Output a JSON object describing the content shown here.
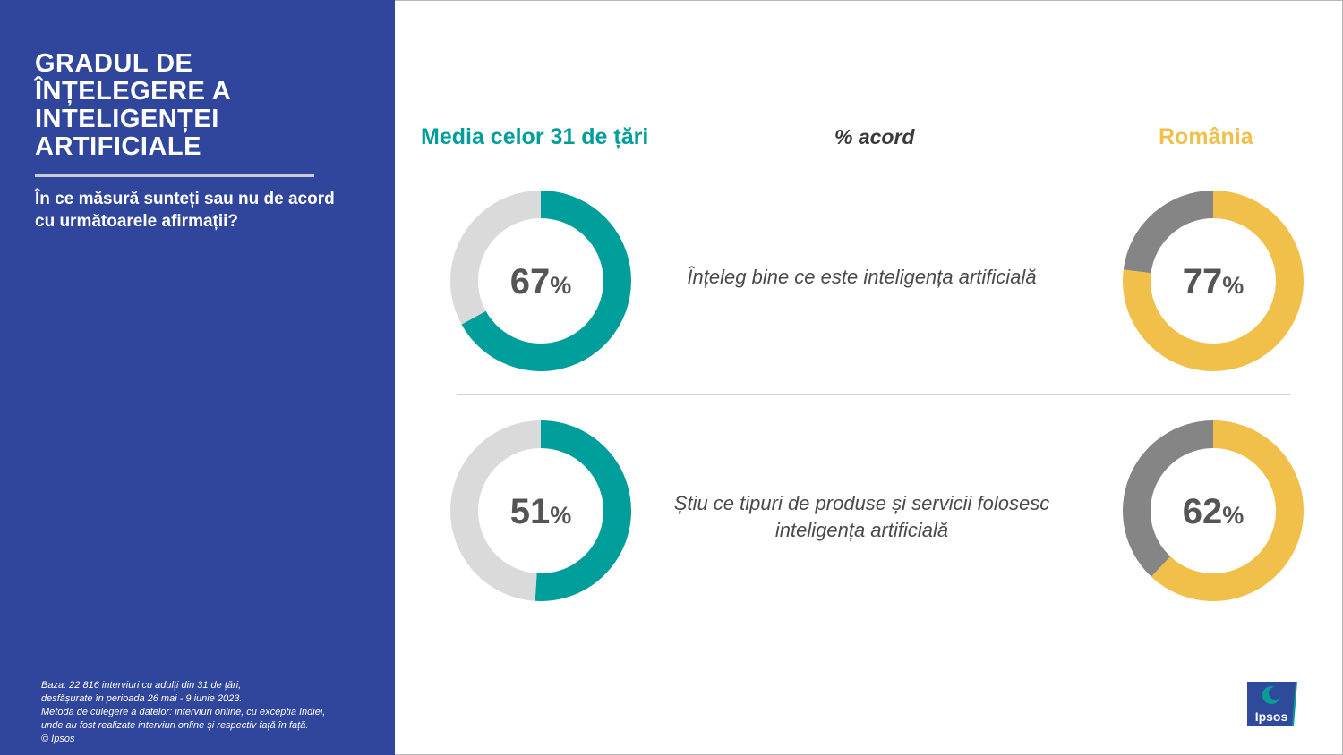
{
  "sidebar": {
    "title": "GRADUL DE ÎNȚELEGERE A INTELIGENȚEI ARTIFICIALE",
    "subtitle": "În ce măsură sunteți sau nu de acord cu următoarele afirmații?",
    "footnote": [
      "Baza: 22.816 interviuri cu adulți din 31 de țări,",
      "desfășurate în perioada 26 mai - 9 iunie 2023.",
      "Metoda de culegere a datelor: interviuri online, cu excepția Indiei,",
      "unde au fost realizate interviuri online și respectiv față în față.",
      "© Ipsos"
    ]
  },
  "headers": {
    "left": "Media celor 31 de țări",
    "middle": "% acord",
    "right": "România"
  },
  "statements": [
    "Înțeleg bine ce este inteligența artificială",
    "Știu ce tipuri de produse și servicii folosesc inteligența artificială"
  ],
  "colors": {
    "sidebar": "#30469c",
    "teal": "#009e9a",
    "gold": "#f0c04a",
    "light_gray": "#dadada",
    "dark_gray": "#858585"
  },
  "chart_data": [
    {
      "type": "pie",
      "group": "Media celor 31 de țări",
      "statement": "Înțeleg bine ce este inteligența artificială",
      "values": [
        67,
        33
      ],
      "label": "67",
      "unit": "%"
    },
    {
      "type": "pie",
      "group": "România",
      "statement": "Înțeleg bine ce este inteligența artificială",
      "values": [
        77,
        23
      ],
      "label": "77",
      "unit": "%"
    },
    {
      "type": "pie",
      "group": "Media celor 31 de țări",
      "statement": "Știu ce tipuri de produse și servicii folosesc inteligența artificială",
      "values": [
        51,
        49
      ],
      "label": "51",
      "unit": "%"
    },
    {
      "type": "pie",
      "group": "România",
      "statement": "Știu ce tipuri de produse și servicii folosesc inteligența artificială",
      "values": [
        62,
        38
      ],
      "label": "62",
      "unit": "%"
    }
  ],
  "logo": {
    "text": "Ipsos"
  }
}
